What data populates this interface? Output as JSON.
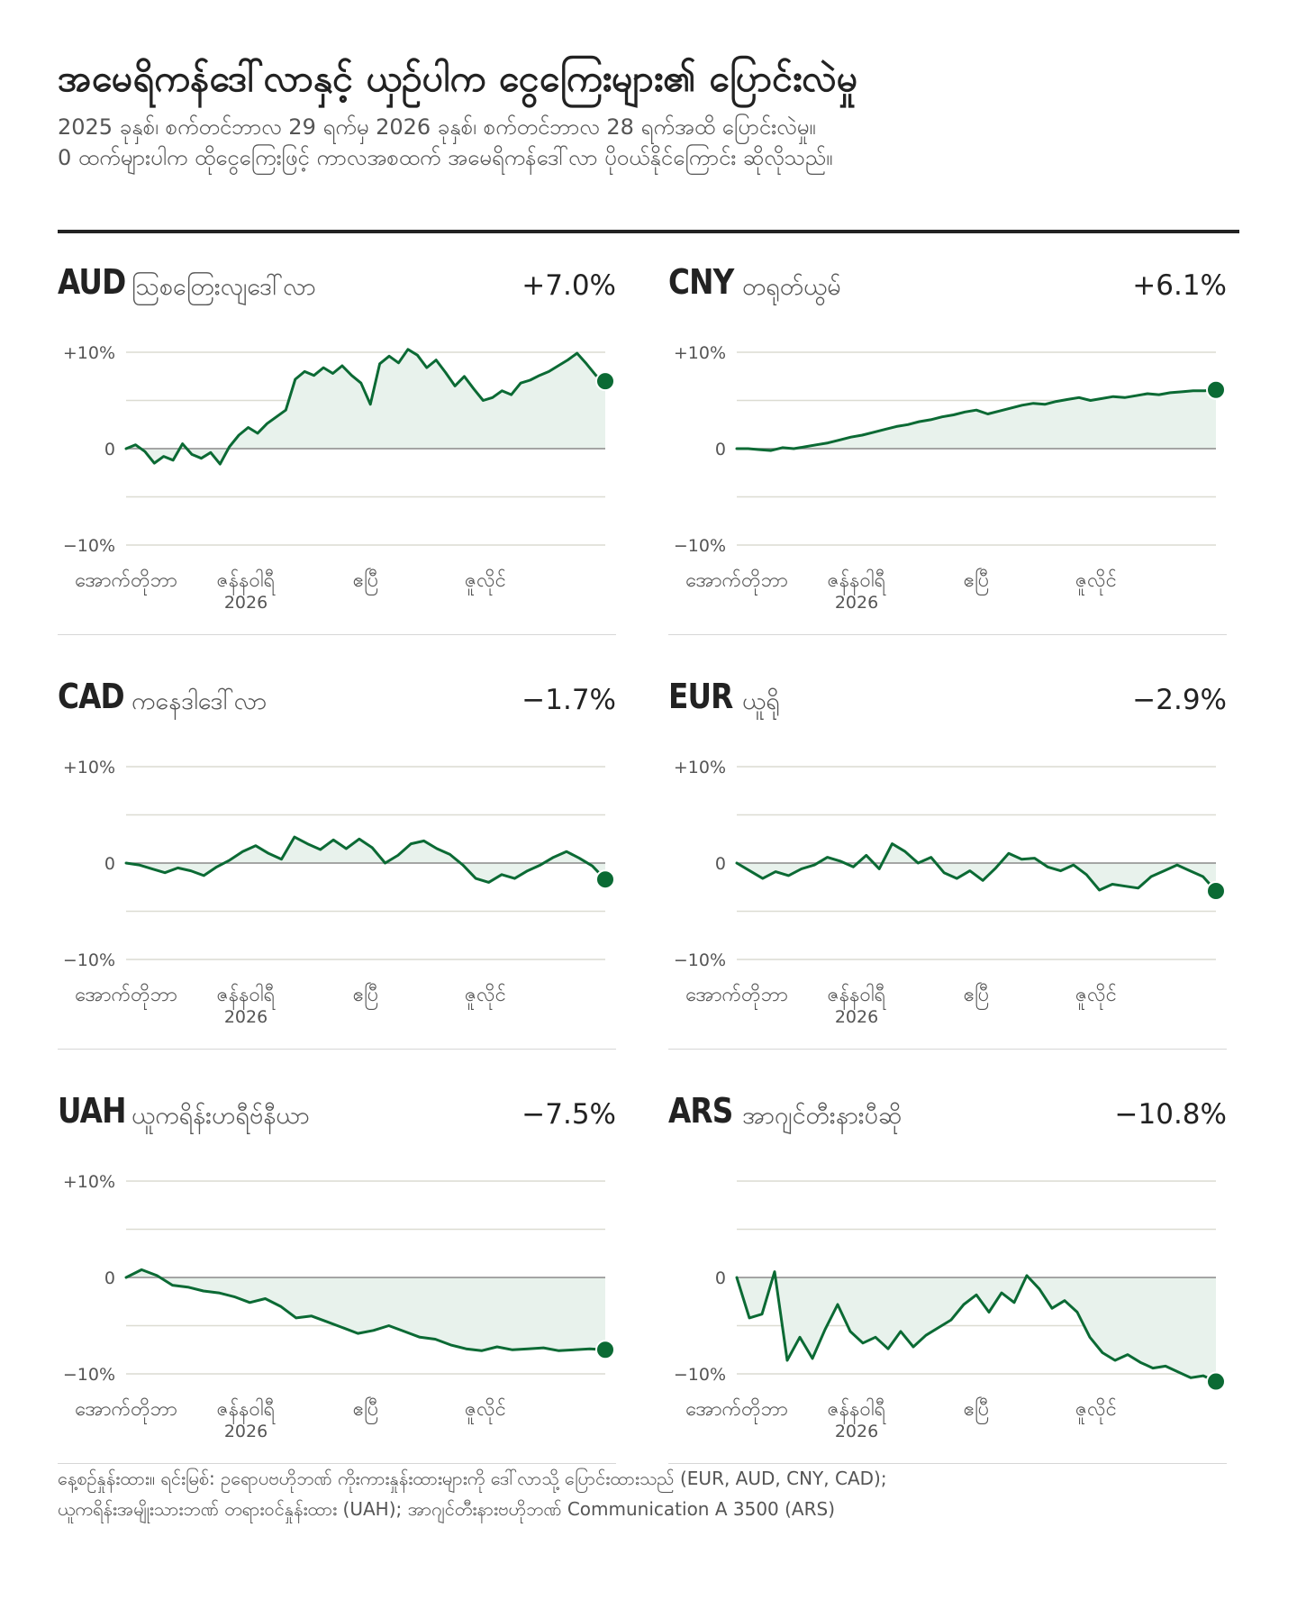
{
  "header": {
    "title": "အမေရိကန်ဒေါ်လာနှင့် ယှဉ်ပါက ငွေကြေးများ၏ ပြောင်းလဲမှု",
    "subtitle_line1": "2025 ခုနှစ်၊ စက်တင်ဘာလ 29 ရက်မှ 2026 ခုနှစ်၊ စက်တင်ဘာလ 28 ရက်အထိ ပြောင်းလဲမှု။",
    "subtitle_line2": "0 ထက်များပါက ထိုငွေကြေးဖြင့် ကာလအစထက် အမေရိကန်ဒေါ်လာ ပိုဝယ်နိုင်ကြောင်း ဆိုလိုသည်။"
  },
  "footer": {
    "line1": "နေ့စဉ်နှုန်းထား။ ရင်းမြစ်: ဥရောပဗဟိုဘဏ် ကိုးကားနှုန်းထားများကို ဒေါ်လာသို့ ပြောင်းထားသည် (EUR, AUD, CNY, CAD);",
    "line2": "ယူကရိန်းအမျိုးသားဘဏ် တရားဝင်နှုန်းထား (UAH); အာဂျင်တီးနားဗဟိုဘဏ် Communication A 3500 (ARS)"
  },
  "colors": {
    "line": "#0b6a34",
    "area": "#e8f2ec",
    "grid": "#dcdcd2",
    "zero": "#8a8a8a"
  },
  "chart_data": [
    {
      "type": "area",
      "code": "AUD",
      "name": "ဩစတြေးလျဒေါ်လာ",
      "change_label": "+7.0%",
      "ylim": [
        -10,
        10
      ],
      "y_ticks": [
        "+10%",
        "0",
        "−10%"
      ],
      "x_ticks": [
        {
          "label": "အောက်တိုဘာ",
          "x": 0
        },
        {
          "label": "ဇန်နဝါရီ",
          "sub": "2026",
          "x": 0.25
        },
        {
          "label": "ဧပြီ",
          "x": 0.5
        },
        {
          "label": "ဇူလိုင်",
          "x": 0.75
        }
      ],
      "values": [
        0,
        0.4,
        -0.3,
        -1.5,
        -0.8,
        -1.2,
        0.5,
        -0.6,
        -1.0,
        -0.4,
        -1.6,
        0.2,
        1.4,
        2.2,
        1.6,
        2.6,
        3.3,
        4.0,
        7.2,
        8.0,
        7.6,
        8.4,
        7.8,
        8.6,
        7.6,
        6.8,
        4.6,
        8.8,
        9.6,
        8.9,
        10.3,
        9.7,
        8.4,
        9.2,
        7.9,
        6.5,
        7.5,
        6.2,
        5.0,
        5.3,
        6.0,
        5.6,
        6.8,
        7.1,
        7.6,
        8.0,
        8.6,
        9.2,
        9.9,
        8.8,
        7.6,
        7.0
      ]
    },
    {
      "type": "area",
      "code": "CNY",
      "name": "တရုတ်ယွမ်",
      "change_label": "+6.1%",
      "ylim": [
        -10,
        10
      ],
      "y_ticks": [
        "+10%",
        "0",
        "−10%"
      ],
      "x_ticks": [
        {
          "label": "အောက်တိုဘာ",
          "x": 0
        },
        {
          "label": "ဇန်နဝါရီ",
          "sub": "2026",
          "x": 0.25
        },
        {
          "label": "ဧပြီ",
          "x": 0.5
        },
        {
          "label": "ဇူလိုင်",
          "x": 0.75
        }
      ],
      "values": [
        0,
        0.0,
        -0.1,
        -0.2,
        0.1,
        0.0,
        0.2,
        0.4,
        0.6,
        0.9,
        1.2,
        1.4,
        1.7,
        2.0,
        2.3,
        2.5,
        2.8,
        3.0,
        3.3,
        3.5,
        3.8,
        4.0,
        3.6,
        3.9,
        4.2,
        4.5,
        4.7,
        4.6,
        4.9,
        5.1,
        5.3,
        5.0,
        5.2,
        5.4,
        5.3,
        5.5,
        5.7,
        5.6,
        5.8,
        5.9,
        6.0,
        6.0,
        6.1
      ]
    },
    {
      "type": "area",
      "code": "CAD",
      "name": "ကနေဒါဒေါ်လာ",
      "change_label": "−1.7%",
      "ylim": [
        -10,
        10
      ],
      "y_ticks": [
        "+10%",
        "0",
        "−10%"
      ],
      "x_ticks": [
        {
          "label": "အောက်တိုဘာ",
          "x": 0
        },
        {
          "label": "ဇန်နဝါရီ",
          "sub": "2026",
          "x": 0.25
        },
        {
          "label": "ဧပြီ",
          "x": 0.5
        },
        {
          "label": "ဇူလိုင်",
          "x": 0.75
        }
      ],
      "values": [
        0,
        -0.2,
        -0.6,
        -1.0,
        -0.5,
        -0.8,
        -1.3,
        -0.4,
        0.3,
        1.2,
        1.8,
        1.0,
        0.4,
        2.7,
        2.0,
        1.4,
        2.4,
        1.5,
        2.5,
        1.6,
        0.0,
        0.8,
        2.0,
        2.3,
        1.5,
        0.9,
        -0.2,
        -1.6,
        -2.0,
        -1.2,
        -1.6,
        -0.8,
        -0.2,
        0.6,
        1.2,
        0.5,
        -0.3,
        -1.7
      ]
    },
    {
      "type": "area",
      "code": "EUR",
      "name": "ယူရို",
      "change_label": "−2.9%",
      "ylim": [
        -10,
        10
      ],
      "y_ticks": [
        "+10%",
        "0",
        "−10%"
      ],
      "x_ticks": [
        {
          "label": "အောက်တိုဘာ",
          "x": 0
        },
        {
          "label": "ဇန်နဝါရီ",
          "sub": "2026",
          "x": 0.25
        },
        {
          "label": "ဧပြီ",
          "x": 0.5
        },
        {
          "label": "ဇူလိုင်",
          "x": 0.75
        }
      ],
      "values": [
        0,
        -0.8,
        -1.6,
        -0.9,
        -1.3,
        -0.6,
        -0.2,
        0.6,
        0.2,
        -0.4,
        0.8,
        -0.6,
        2.0,
        1.2,
        0.0,
        0.6,
        -1.0,
        -1.6,
        -0.8,
        -1.8,
        -0.5,
        1.0,
        0.4,
        0.5,
        -0.4,
        -0.8,
        -0.2,
        -1.2,
        -2.8,
        -2.2,
        -2.4,
        -2.6,
        -1.4,
        -0.8,
        -0.2,
        -0.8,
        -1.4,
        -2.9
      ]
    },
    {
      "type": "area",
      "code": "UAH",
      "name": "ယူကရိန်းဟရီဗ်နီယာ",
      "change_label": "−7.5%",
      "ylim": [
        -10,
        10
      ],
      "y_ticks": [
        "+10%",
        "0",
        "−10%"
      ],
      "x_ticks": [
        {
          "label": "အောက်တိုဘာ",
          "x": 0
        },
        {
          "label": "ဇန်နဝါရီ",
          "sub": "2026",
          "x": 0.25
        },
        {
          "label": "ဧပြီ",
          "x": 0.5
        },
        {
          "label": "ဇူလိုင်",
          "x": 0.75
        }
      ],
      "values": [
        0,
        0.8,
        0.2,
        -0.8,
        -1.0,
        -1.4,
        -1.6,
        -2.0,
        -2.6,
        -2.2,
        -3.0,
        -4.2,
        -4.0,
        -4.6,
        -5.2,
        -5.8,
        -5.5,
        -5.0,
        -5.6,
        -6.2,
        -6.4,
        -7.0,
        -7.4,
        -7.6,
        -7.2,
        -7.5,
        -7.4,
        -7.3,
        -7.6,
        -7.5,
        -7.4,
        -7.5
      ]
    },
    {
      "type": "area",
      "code": "ARS",
      "name": "အာဂျင်တီးနားပီဆို",
      "change_label": "−10.8%",
      "ylim": [
        -10,
        10
      ],
      "y_ticks": [
        "0",
        "−10%"
      ],
      "x_ticks": [
        {
          "label": "အောက်တိုဘာ",
          "x": 0
        },
        {
          "label": "ဇန်နဝါရီ",
          "sub": "2026",
          "x": 0.25
        },
        {
          "label": "ဧပြီ",
          "x": 0.5
        },
        {
          "label": "ဇူလိုင်",
          "x": 0.75
        }
      ],
      "values": [
        0,
        -4.2,
        -3.8,
        0.6,
        -8.6,
        -6.2,
        -8.4,
        -5.4,
        -2.8,
        -5.6,
        -6.8,
        -6.2,
        -7.4,
        -5.6,
        -7.2,
        -6.0,
        -5.2,
        -4.4,
        -2.8,
        -1.8,
        -3.6,
        -1.6,
        -2.6,
        0.2,
        -1.2,
        -3.2,
        -2.4,
        -3.6,
        -6.2,
        -7.8,
        -8.6,
        -8.0,
        -8.8,
        -9.4,
        -9.2,
        -9.8,
        -10.4,
        -10.2,
        -10.8
      ]
    }
  ]
}
